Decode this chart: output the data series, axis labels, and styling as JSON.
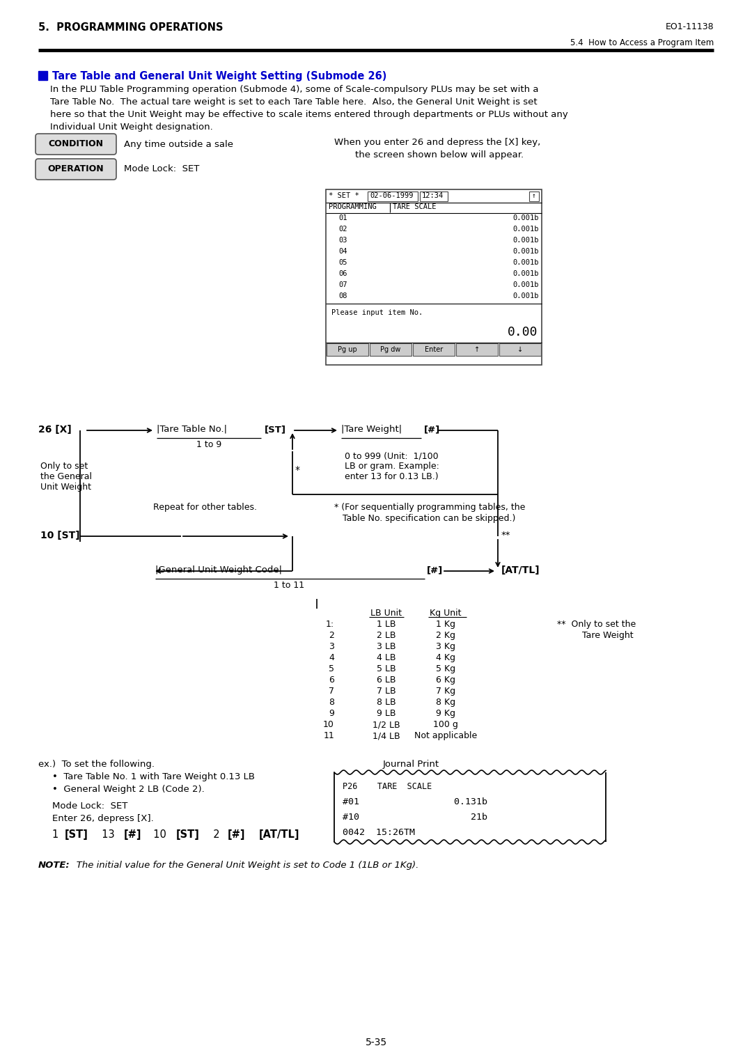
{
  "page_header_left": "5.  PROGRAMMING OPERATIONS",
  "page_header_right": "EO1-11138",
  "page_subheader_right": "5.4  How to Access a Program Item",
  "section_title": "Tare Table and General Unit Weight Setting (Submode 26)",
  "body_text": [
    "In the PLU Table Programming operation (Submode 4), some of Scale-compulsory PLUs may be set with a",
    "Tare Table No.  The actual tare weight is set to each Tare Table here.  Also, the General Unit Weight is set",
    "here so that the Unit Weight may be effective to scale items entered through departments or PLUs without any",
    "Individual Unit Weight designation."
  ],
  "condition_label": "CONDITION",
  "condition_text": "Any time outside a sale",
  "operation_label": "OPERATION",
  "operation_text": "Mode Lock:  SET",
  "screen_right_text1": "When you enter 26 and depress the [X] key,",
  "screen_right_text2": "the screen shown below will appear.",
  "screen_items": [
    "01",
    "02",
    "03",
    "04",
    "05",
    "06",
    "07",
    "08"
  ],
  "screen_values": [
    "0.001b",
    "0.001b",
    "0.001b",
    "0.001b",
    "0.001b",
    "0.001b",
    "0.001b",
    "0.001b"
  ],
  "screen_bottom_text": "Please input item No.",
  "screen_bottom_value": "0.00",
  "screen_buttons": [
    "Pg up",
    "Pg dw",
    "Enter",
    "↑",
    "↓"
  ],
  "flow_label_26x": "26 [X]",
  "flow_label_tare_no": "|Tare Table No.|",
  "flow_label_st1": "[ST]",
  "flow_label_tare_wt": "|Tare Weight|",
  "flow_label_hash1": "[#]",
  "flow_label_1to9": "1 to 9",
  "flow_note_only": "Only to set\nthe General\nUnit Weight",
  "flow_asterisk": "*",
  "flow_note_0to999": "0 to 999 (Unit:  1/100\nLB or gram. Example:\nenter 13 for 0.13 LB.)",
  "flow_repeat": "Repeat for other tables.",
  "flow_note_seq1": "* (For sequentially programming tables, the",
  "flow_note_seq2": "   Table No. specification can be skipped.)",
  "flow_label_10st": "10 [ST]",
  "flow_double_asterisk": "**",
  "flow_label_gen_unit": "|General Unit Weight Code|",
  "flow_label_hash2": "[#]",
  "flow_label_attl": "[AT/TL]",
  "flow_label_1to11": "1 to 11",
  "table_header": [
    "LB Unit",
    "Kg Unit"
  ],
  "table_rows": [
    [
      "1:",
      "1 LB",
      "1 Kg"
    ],
    [
      "2",
      "2 LB",
      "2 Kg"
    ],
    [
      "3",
      "3 LB",
      "3 Kg"
    ],
    [
      "4",
      "4 LB",
      "4 Kg"
    ],
    [
      "5",
      "5 LB",
      "5 Kg"
    ],
    [
      "6",
      "6 LB",
      "6 Kg"
    ],
    [
      "7",
      "7 LB",
      "7 Kg"
    ],
    [
      "8",
      "8 LB",
      "8 Kg"
    ],
    [
      "9",
      "9 LB",
      "9 Kg"
    ],
    [
      "10",
      "1/2 LB",
      "100 g"
    ],
    [
      "11",
      "1/4 LB",
      "Not applicable"
    ]
  ],
  "double_asterisk_note1": "**  Only to set the",
  "double_asterisk_note2": "    Tare Weight",
  "example_title": "ex.)  To set the following.",
  "example_bullets": [
    "•  Tare Table No. 1 with Tare Weight 0.13 LB",
    "•  General Weight 2 LB (Code 2)."
  ],
  "example_mode": "Mode Lock:  SET",
  "example_enter": "Enter 26, depress [X].",
  "example_cmd_parts": [
    "1 ",
    "[ST]",
    "  13 ",
    "[#]",
    "  10 ",
    "[ST]",
    "  2 ",
    "[#]",
    "  ",
    "[AT/TL]"
  ],
  "example_cmd_bold": [
    false,
    true,
    false,
    true,
    false,
    true,
    false,
    true,
    false,
    true
  ],
  "journal_title": "Journal Print",
  "journal_line0": "P26    TARE  SCALE",
  "journal_line1": "#01                 0.131b",
  "journal_line2": "#10                    21b",
  "journal_line3": "0042  15:26TM",
  "note_label": "NOTE:",
  "note_text": "   The initial value for the General Unit Weight is set to Code 1 (1LB or 1Kg).",
  "page_number": "5-35",
  "title_color": "#0000CC",
  "title_square_color": "#0000CC"
}
